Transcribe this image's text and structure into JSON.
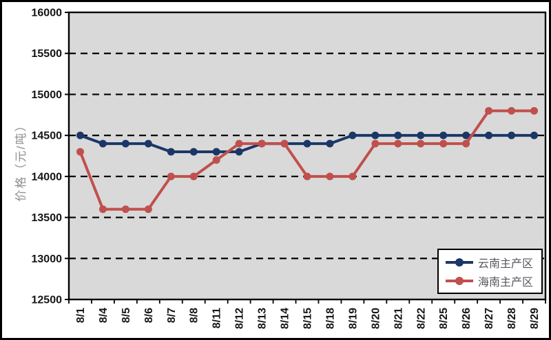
{
  "chart_data": {
    "type": "line",
    "title": "",
    "xlabel": "",
    "ylabel": "价格（元/吨）",
    "categories": [
      "8/1",
      "8/4",
      "8/5",
      "8/6",
      "8/7",
      "8/8",
      "8/11",
      "8/12",
      "8/13",
      "8/14",
      "8/15",
      "8/18",
      "8/19",
      "8/20",
      "8/21",
      "8/22",
      "8/25",
      "8/26",
      "8/27",
      "8/28",
      "8/29"
    ],
    "series": [
      {
        "name": "云南主产区",
        "color": "#1b3768",
        "values": [
          14500,
          14400,
          14400,
          14400,
          14300,
          14300,
          14300,
          14300,
          14400,
          14400,
          14400,
          14400,
          14500,
          14500,
          14500,
          14500,
          14500,
          14500,
          14500,
          14500,
          14500
        ]
      },
      {
        "name": "海南主产区",
        "color": "#c0504d",
        "values": [
          14300,
          13600,
          13600,
          13600,
          14000,
          14000,
          14200,
          14400,
          14400,
          14400,
          14000,
          14000,
          14000,
          14400,
          14400,
          14400,
          14400,
          14400,
          14800,
          14800,
          14800
        ]
      }
    ],
    "ylim": [
      12500,
      16000
    ],
    "yticks": [
      16000,
      15500,
      15000,
      14500,
      14000,
      13500,
      13000,
      12500
    ],
    "grid": "horizontal-dashed",
    "legend_position": "inside-bottom-right",
    "plot_background": "#d9d9d9",
    "axis_color": "#000000",
    "tick_label_color": "#151515"
  }
}
